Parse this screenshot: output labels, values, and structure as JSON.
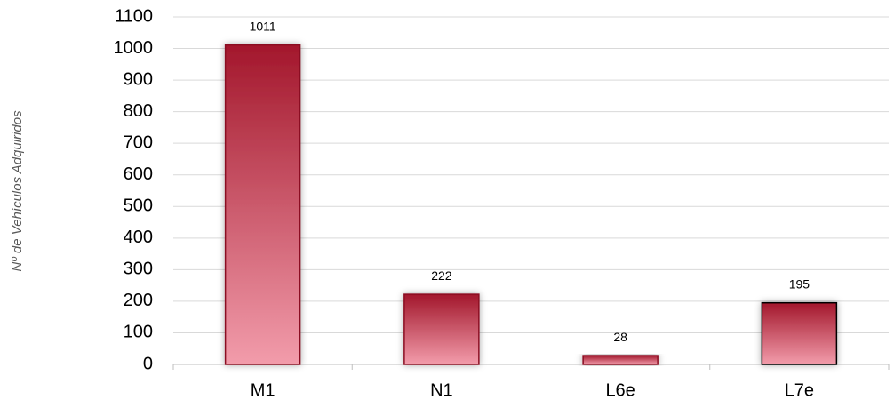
{
  "chart_data": {
    "type": "bar",
    "ylabel": "Nº de Vehículos Adquiridos",
    "categories": [
      "M1",
      "N1",
      "L6e",
      "L7e"
    ],
    "values": [
      1011,
      222,
      28,
      195
    ],
    "color": [
      "#a3172c",
      "#f29cab"
    ],
    "edgecolors": [
      "#8b0f20",
      "#8b0f20",
      "#8b0f20",
      "#000000"
    ],
    "ylim": [
      0,
      1100
    ],
    "yticks": [
      0,
      100,
      200,
      300,
      400,
      500,
      600,
      700,
      800,
      900,
      1000,
      1100
    ],
    "grid": true
  }
}
